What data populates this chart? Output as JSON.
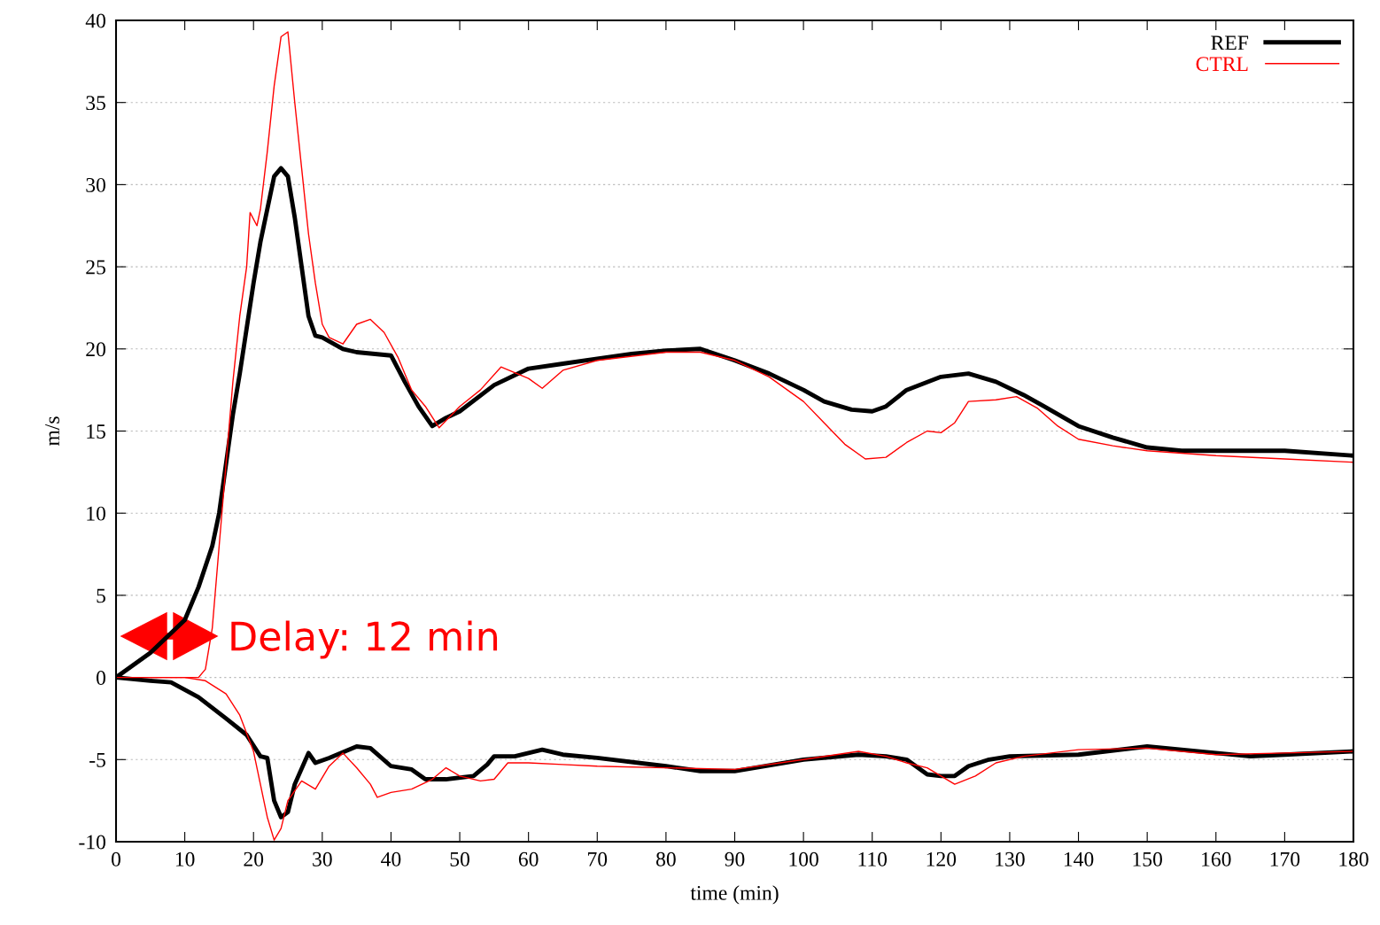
{
  "chart_data": {
    "type": "line",
    "xlabel": "time (min)",
    "ylabel": "m/s",
    "xlim": [
      0,
      180
    ],
    "ylim": [
      -10,
      40
    ],
    "xticks": [
      0,
      10,
      20,
      30,
      40,
      50,
      60,
      70,
      80,
      90,
      100,
      110,
      120,
      130,
      140,
      150,
      160,
      170,
      180
    ],
    "yticks": [
      -10,
      -5,
      0,
      5,
      10,
      15,
      20,
      25,
      30,
      35,
      40
    ],
    "grid": "y",
    "legend": "top right",
    "line_style": "solid",
    "marker": "none",
    "annotations": [
      "Delay: 12 min"
    ],
    "series": [
      {
        "name": "REF",
        "color": "#000000",
        "x": [
          0,
          5,
          10,
          12,
          14,
          15,
          16,
          17,
          18,
          20,
          21,
          22,
          23,
          24,
          25,
          26,
          27,
          28,
          29,
          30,
          33,
          35,
          40,
          42,
          44,
          46,
          48,
          50,
          55,
          60,
          65,
          70,
          75,
          80,
          85,
          90,
          95,
          100,
          103,
          107,
          110,
          112,
          115,
          120,
          124,
          128,
          132,
          135,
          140,
          145,
          150,
          155,
          160,
          170,
          180
        ],
        "values": [
          0,
          1.5,
          3.5,
          5.5,
          8,
          10,
          13,
          16,
          18.5,
          24,
          26.5,
          28.5,
          30.5,
          31,
          30.5,
          28,
          25,
          22,
          20.8,
          20.7,
          20,
          19.8,
          19.6,
          18,
          16.5,
          15.3,
          15.8,
          16.2,
          17.8,
          18.8,
          19.1,
          19.4,
          19.7,
          19.9,
          20,
          19.3,
          18.5,
          17.5,
          16.8,
          16.3,
          16.2,
          16.5,
          17.5,
          18.3,
          18.5,
          18,
          17.2,
          16.5,
          15.3,
          14.6,
          14,
          13.8,
          13.8,
          13.8,
          13.5
        ]
      },
      {
        "name": "CTRL",
        "color": "#ff0000",
        "x": [
          0,
          12,
          13,
          14,
          15,
          16,
          17,
          18,
          19,
          19.5,
          20.5,
          21,
          22,
          23,
          24,
          25,
          26,
          27,
          28,
          29,
          30,
          31,
          33,
          35,
          37,
          39,
          41,
          43,
          45,
          47,
          50,
          53,
          56,
          60,
          62,
          65,
          70,
          80,
          85,
          90,
          95,
          100,
          103,
          106,
          109,
          112,
          115,
          118,
          120,
          122,
          124,
          128,
          131,
          134,
          137,
          140,
          145,
          150,
          160,
          170,
          180
        ],
        "values": [
          0,
          0,
          0.5,
          3,
          8,
          13,
          18,
          22,
          25,
          28.3,
          27.5,
          28.5,
          32,
          36,
          39,
          39.3,
          35,
          31,
          27,
          24,
          21.5,
          20.7,
          20.3,
          21.5,
          21.8,
          21,
          19.5,
          17.5,
          16.5,
          15.2,
          16.5,
          17.5,
          18.9,
          18.2,
          17.6,
          18.7,
          19.3,
          19.8,
          19.8,
          19.3,
          18.3,
          16.8,
          15.5,
          14.2,
          13.3,
          13.4,
          14.3,
          15,
          14.9,
          15.5,
          16.8,
          16.9,
          17.1,
          16.4,
          15.3,
          14.5,
          14.1,
          13.8,
          13.5,
          13.3,
          13.1
        ]
      },
      {
        "color": "#000000",
        "x": [
          0,
          5,
          8,
          12,
          16,
          19,
          21,
          22,
          23,
          24,
          25,
          26,
          28,
          29,
          31,
          35,
          37,
          40,
          43,
          45,
          48,
          52,
          54,
          55,
          58,
          62,
          65,
          70,
          80,
          85,
          90,
          100,
          108,
          112,
          115,
          118,
          120,
          122,
          124,
          127,
          130,
          140,
          150,
          160,
          165,
          170,
          180
        ],
        "values": [
          0,
          -0.2,
          -0.3,
          -1.2,
          -2.5,
          -3.5,
          -4.8,
          -4.9,
          -7.5,
          -8.5,
          -8.2,
          -6.5,
          -4.6,
          -5.2,
          -4.9,
          -4.2,
          -4.3,
          -5.4,
          -5.6,
          -6.2,
          -6.2,
          -6,
          -5.3,
          -4.8,
          -4.8,
          -4.4,
          -4.7,
          -4.9,
          -5.4,
          -5.7,
          -5.7,
          -5,
          -4.7,
          -4.8,
          -5,
          -5.9,
          -6,
          -6,
          -5.4,
          -5,
          -4.8,
          -4.7,
          -4.2,
          -4.6,
          -4.8,
          -4.7,
          -4.5
        ]
      },
      {
        "color": "#ff0000",
        "x": [
          0,
          10,
          13,
          16,
          18,
          20,
          21,
          22,
          23,
          24,
          25,
          27,
          29,
          31,
          33,
          35,
          37,
          38,
          40,
          43,
          46,
          48,
          50,
          53,
          55,
          57,
          60,
          65,
          70,
          80,
          90,
          100,
          108,
          112,
          115,
          118,
          122,
          125,
          128,
          132,
          140,
          150,
          160,
          170,
          180
        ],
        "values": [
          0,
          0,
          -0.2,
          -1,
          -2.3,
          -4.5,
          -6.5,
          -8.5,
          -9.9,
          -9.2,
          -7.5,
          -6.3,
          -6.8,
          -5.4,
          -4.6,
          -5.5,
          -6.5,
          -7.3,
          -7,
          -6.8,
          -6.2,
          -5.5,
          -6,
          -6.3,
          -6.2,
          -5.2,
          -5.2,
          -5.3,
          -5.4,
          -5.5,
          -5.6,
          -5,
          -4.5,
          -4.8,
          -5.2,
          -5.5,
          -6.5,
          -6,
          -5.2,
          -4.8,
          -4.4,
          -4.3,
          -4.7,
          -4.6,
          -4.5
        ]
      }
    ]
  }
}
